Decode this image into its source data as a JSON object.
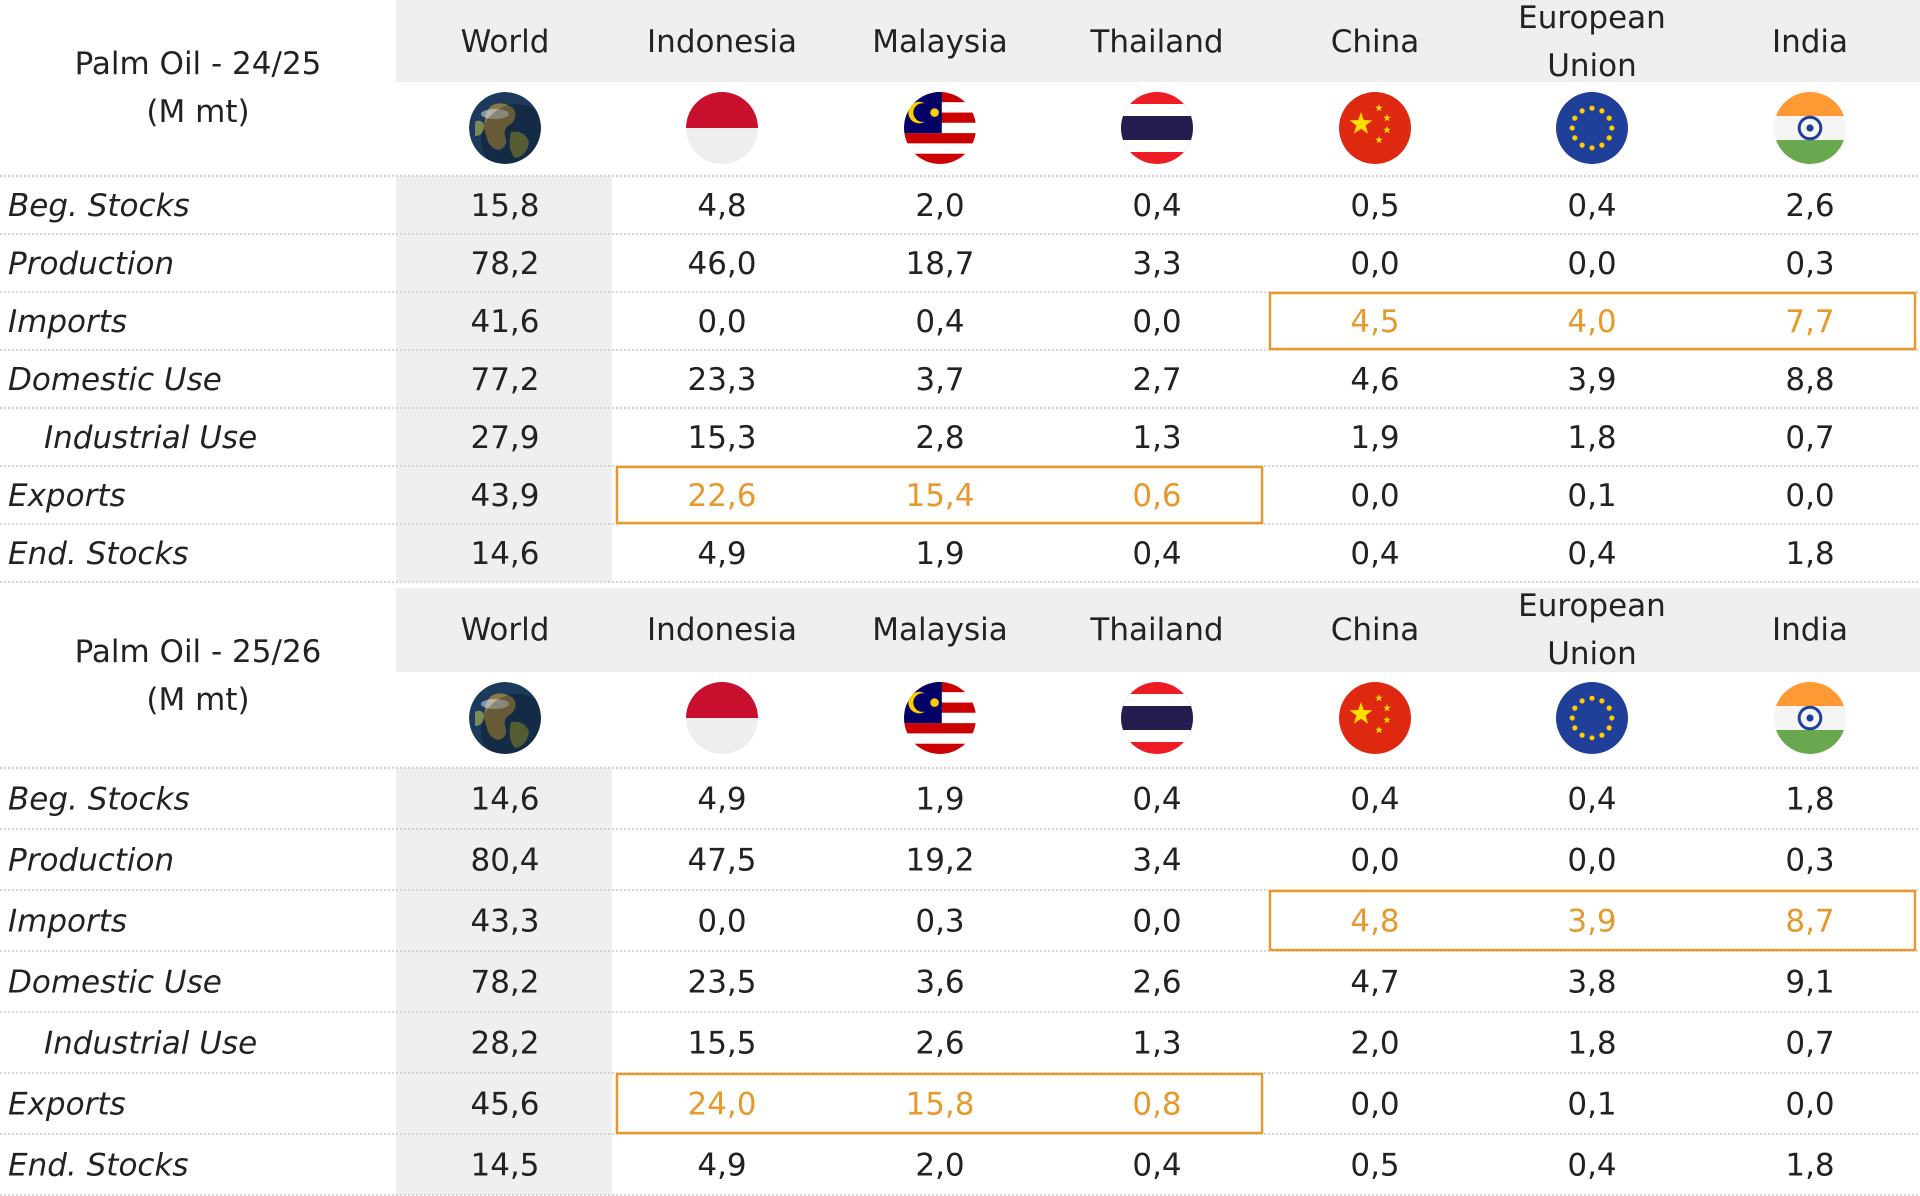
{
  "chart_data": [
    {
      "type": "table",
      "title": "Palm Oil - 24/25",
      "unit": "(M mt)",
      "columns": [
        "World",
        "Indonesia",
        "Malaysia",
        "Thailand",
        "China",
        "European Union",
        "India"
      ],
      "column_lines": [
        [
          "World"
        ],
        [
          "Indonesia"
        ],
        [
          "Malaysia"
        ],
        [
          "Thailand"
        ],
        [
          "China"
        ],
        [
          "European",
          "Union"
        ],
        [
          "India"
        ]
      ],
      "flags": [
        "globe",
        "indonesia",
        "malaysia",
        "thailand",
        "china",
        "european-union",
        "india"
      ],
      "rows": [
        {
          "label": "Beg. Stocks",
          "indent": false,
          "values": [
            "15,8",
            "4,8",
            "2,0",
            "0,4",
            "0,5",
            "0,4",
            "2,6"
          ],
          "highlight": []
        },
        {
          "label": "Production",
          "indent": false,
          "values": [
            "78,2",
            "46,0",
            "18,7",
            "3,3",
            "0,0",
            "0,0",
            "0,3"
          ],
          "highlight": []
        },
        {
          "label": "Imports",
          "indent": false,
          "values": [
            "41,6",
            "0,0",
            "0,4",
            "0,0",
            "4,5",
            "4,0",
            "7,7"
          ],
          "highlight": [
            4,
            5,
            6
          ]
        },
        {
          "label": "Domestic Use",
          "indent": false,
          "values": [
            "77,2",
            "23,3",
            "3,7",
            "2,7",
            "4,6",
            "3,9",
            "8,8"
          ],
          "highlight": []
        },
        {
          "label": "Industrial Use",
          "indent": true,
          "values": [
            "27,9",
            "15,3",
            "2,8",
            "1,3",
            "1,9",
            "1,8",
            "0,7"
          ],
          "highlight": []
        },
        {
          "label": "Exports",
          "indent": false,
          "values": [
            "43,9",
            "22,6",
            "15,4",
            "0,6",
            "0,0",
            "0,1",
            "0,0"
          ],
          "highlight": [
            1,
            2,
            3
          ]
        },
        {
          "label": "End. Stocks",
          "indent": false,
          "values": [
            "14,6",
            "4,9",
            "1,9",
            "0,4",
            "0,4",
            "0,4",
            "1,8"
          ],
          "highlight": []
        }
      ]
    },
    {
      "type": "table",
      "title": "Palm Oil - 25/26",
      "unit": "(M mt)",
      "columns": [
        "World",
        "Indonesia",
        "Malaysia",
        "Thailand",
        "China",
        "European Union",
        "India"
      ],
      "column_lines": [
        [
          "World"
        ],
        [
          "Indonesia"
        ],
        [
          "Malaysia"
        ],
        [
          "Thailand"
        ],
        [
          "China"
        ],
        [
          "European",
          "Union"
        ],
        [
          "India"
        ]
      ],
      "flags": [
        "globe",
        "indonesia",
        "malaysia",
        "thailand",
        "china",
        "european-union",
        "india"
      ],
      "rows": [
        {
          "label": "Beg. Stocks",
          "indent": false,
          "values": [
            "14,6",
            "4,9",
            "1,9",
            "0,4",
            "0,4",
            "0,4",
            "1,8"
          ],
          "highlight": []
        },
        {
          "label": "Production",
          "indent": false,
          "values": [
            "80,4",
            "47,5",
            "19,2",
            "3,4",
            "0,0",
            "0,0",
            "0,3"
          ],
          "highlight": []
        },
        {
          "label": "Imports",
          "indent": false,
          "values": [
            "43,3",
            "0,0",
            "0,3",
            "0,0",
            "4,8",
            "3,9",
            "8,7"
          ],
          "highlight": [
            4,
            5,
            6
          ]
        },
        {
          "label": "Domestic Use",
          "indent": false,
          "values": [
            "78,2",
            "23,5",
            "3,6",
            "2,6",
            "4,7",
            "3,8",
            "9,1"
          ],
          "highlight": []
        },
        {
          "label": "Industrial Use",
          "indent": true,
          "values": [
            "28,2",
            "15,5",
            "2,6",
            "1,3",
            "2,0",
            "1,8",
            "0,7"
          ],
          "highlight": []
        },
        {
          "label": "Exports",
          "indent": false,
          "values": [
            "45,6",
            "24,0",
            "15,8",
            "0,8",
            "0,0",
            "0,1",
            "0,0"
          ],
          "highlight": [
            1,
            2,
            3
          ]
        },
        {
          "label": "End. Stocks",
          "indent": false,
          "values": [
            "14,5",
            "4,9",
            "2,0",
            "0,4",
            "0,5",
            "0,4",
            "1,8"
          ],
          "highlight": []
        }
      ]
    }
  ],
  "colors": {
    "header_bg": "#efefef",
    "world_column_bg": "#efefef",
    "highlight": "#e69a2e",
    "text": "#222222",
    "row_divider": "#c8c8c8"
  }
}
